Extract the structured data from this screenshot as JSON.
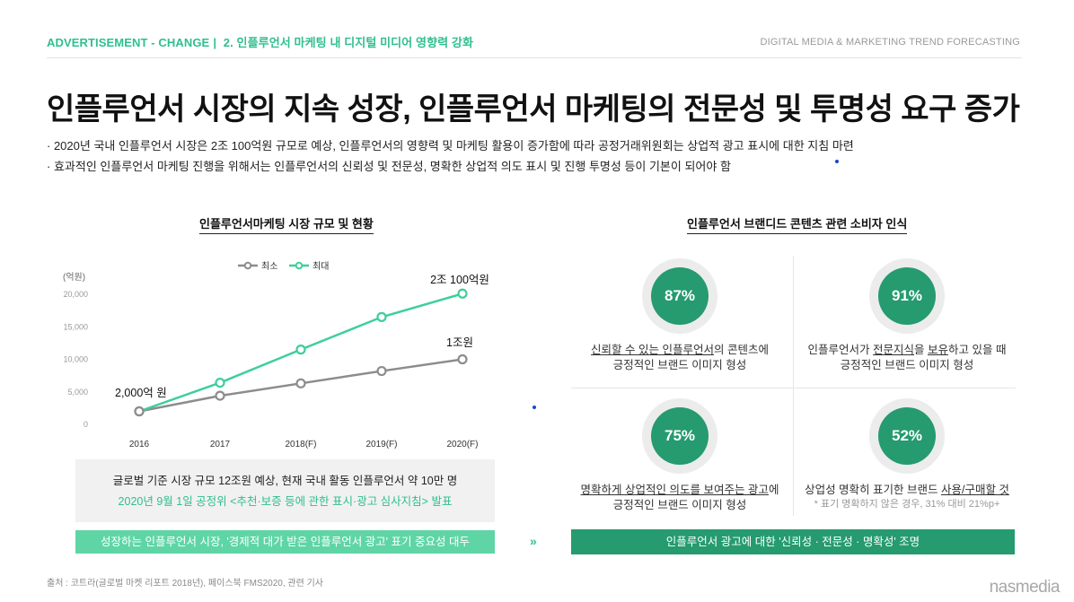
{
  "header": {
    "category": "ADVERTISEMENT - CHANGE",
    "separator": "|",
    "section": "2. 인플루언서 마케팅 내 디지털 미디어 영향력 강화",
    "right_label": "DIGITAL MEDIA & MARKETING TREND FORECASTING"
  },
  "title": "인플루언서 시장의 지속 성장, 인플루언서 마케팅의 전문성 및 투명성 요구 증가",
  "bullets": [
    "2020년 국내 인플루언서 시장은 2조 100억원 규모로 예상, 인플루언서의 영향력 및 마케팅 활용이 증가함에 따라 공정거래위원회는 상업적 광고 표시에 대한 지침 마련",
    "효과적인 인플루언서 마케팅 진행을 위해서는 인플루언서의 신뢰성 및 전문성, 명확한 상업적 의도 표시 및 진행 투명성 등이 기본이 되어야 함"
  ],
  "left_section_title": "인플루언서마케팅 시장 규모 및 현황",
  "right_section_title": "인플루언서 브랜디드 콘텐츠 관련 소비자 인식",
  "chart_data": {
    "type": "line",
    "unit_label": "(억원)",
    "categories": [
      "2016",
      "2017",
      "2018(F)",
      "2019(F)",
      "2020(F)"
    ],
    "ylim": [
      0,
      20000
    ],
    "yticks": [
      "0",
      "5,000",
      "10,000",
      "15,000",
      "20,000"
    ],
    "ytick_values": [
      0,
      5000,
      10000,
      15000,
      20000
    ],
    "series": [
      {
        "name": "최소",
        "color": "#8c8c8c",
        "values": [
          2000,
          4400,
          6300,
          8200,
          10000
        ]
      },
      {
        "name": "최대",
        "color": "#3ecf9a",
        "values": [
          2000,
          6400,
          11500,
          16500,
          20100
        ]
      }
    ],
    "annotations": [
      {
        "text": "2,000억 원"
      },
      {
        "text": "1조원"
      },
      {
        "text": "2조 100억원"
      }
    ]
  },
  "info_box": {
    "line1": "글로벌 기준 시장 규모 12조원 예상, 현재 국내 활동 인플루언서 약 10만 명",
    "line2": "2020년 9월 1일 공정위 <추천·보증 등에 관한 표시·광고 심사지침> 발표"
  },
  "left_bar": "성장하는 인플루언서 시장, '경제적 대가 받은 인플루언서 광고' 표기 중요성 대두",
  "arrows": "»",
  "right_bar": "인플루언서 광고에 대한 '신뢰성 · 전문성 · 명확성' 조명",
  "stats": [
    {
      "percent": "87%",
      "value": 0.87,
      "u1": "신뢰할 수 있는 인플루언서",
      "t1": "의 콘텐츠에",
      "line2": "긍정적인 브랜드 이미지 형성"
    },
    {
      "percent": "91%",
      "value": 0.91,
      "pre": "인플루언서가 ",
      "u1": "전문지식",
      "mid": "을 ",
      "u2": "보유",
      "t1": "하고 있을 때",
      "line2": "긍정적인 브랜드 이미지 형성"
    },
    {
      "percent": "75%",
      "value": 0.75,
      "u1": "명확하게 상업적인 의도를 보여주는 광고",
      "t1": "에",
      "line2": "긍정적인 브랜드 이미지 형성"
    },
    {
      "percent": "52%",
      "value": 0.52,
      "pre": "상업성 명확히 표기한 브랜드 ",
      "u1": "사용/구매할 것",
      "note": "* 표기 명확하지 않은 경우, 31% 대비 21%p+"
    }
  ],
  "source": "출처 : 코트라(글로벌 마켓 리포트 2018년), 페이스북 FMS2020, 관련 기사",
  "logo": "nasmedia"
}
